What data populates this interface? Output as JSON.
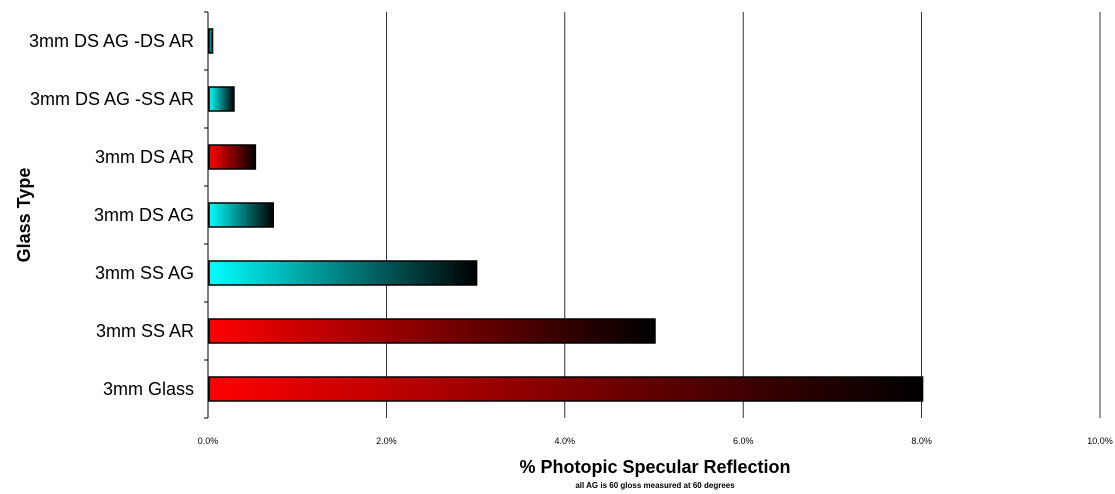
{
  "chart_data": {
    "type": "bar",
    "orientation": "horizontal",
    "categories": [
      "3mm DS AG -DS AR",
      "3mm DS AG -SS AR",
      "3mm DS AR",
      "3mm DS AG",
      "3mm SS AG",
      "3mm SS AR",
      "3mm Glass"
    ],
    "values": [
      0.04,
      0.28,
      0.52,
      0.72,
      3.0,
      5.0,
      8.0
    ],
    "bar_colors": [
      "#00ffff",
      "#00ffff",
      "#ff0000",
      "#00ffff",
      "#00ffff",
      "#ff0000",
      "#ff0000"
    ],
    "gradient_end_color": "#000000",
    "xlabel": "% Photopic Specular Reflection",
    "xlabel_note": "all AG is 60 gloss measured at 60 degrees",
    "ylabel": "Glass Type",
    "xlim": [
      0,
      10
    ],
    "x_ticks": [
      0,
      2,
      4,
      6,
      8,
      10
    ],
    "x_tick_labels": [
      "0.0%",
      "2.0%",
      "4.0%",
      "6.0%",
      "8.0%",
      "10.0%"
    ],
    "grid": "vertical",
    "legend": "none"
  }
}
